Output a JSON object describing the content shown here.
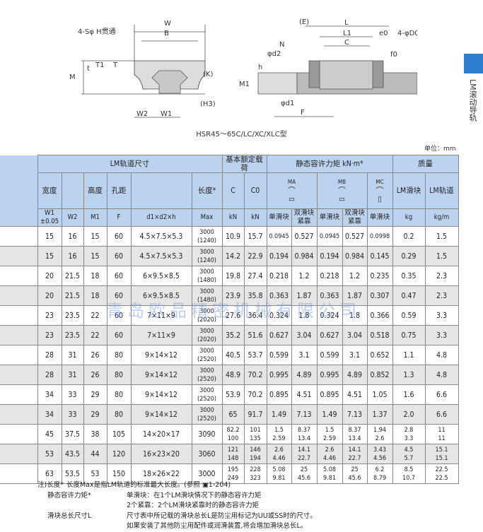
{
  "diagram": {
    "labels": {
      "hole": "4-Sφ H贯通",
      "W": "W",
      "B": "B",
      "T1": "T1",
      "T": "T",
      "t": "t",
      "M": "M",
      "K": "(K)",
      "H3": "(H3)",
      "W2": "W2",
      "W1": "W1",
      "E": "(E)",
      "L": "L",
      "L1": "L1",
      "e0": "e0",
      "D0": "4-φD0",
      "N": "N",
      "C": "C",
      "d2": "φd2",
      "f0": "f0",
      "h": "h",
      "M1": "M1",
      "d1": "φd1",
      "F": "F"
    },
    "caption": "HSR45～65C/LC/XC/XLC型"
  },
  "side_tab": {
    "label": "LM滚动导轨",
    "color": "#2f7fd1"
  },
  "unit": "单位：mm",
  "table": {
    "group_headers": [
      "LM轨道尺寸",
      "基本额定载荷",
      "静态容许力矩 kN·m*",
      "质量"
    ],
    "sub_headers": {
      "width": "宽度",
      "height": "高度",
      "pitch": "孔距",
      "length": "长度*",
      "C": "C",
      "C0": "C0",
      "MA": "MA",
      "MB": "MB",
      "MC": "MC",
      "block": "LM滑块",
      "rail": "LM轨道"
    },
    "unit_headers": [
      "W1 ±0.05",
      "W2",
      "M1",
      "F",
      "d1×d2×h",
      "Max",
      "kN",
      "kN",
      "单滑块",
      "双滑块紧靠",
      "单滑块",
      "双滑块紧靠",
      "单滑块",
      "kg",
      "kg/m"
    ],
    "header_color": "#bcd3ef",
    "rows": [
      [
        "15",
        "16",
        "15",
        "60",
        "4.5×7.5×5.3",
        "3000\n(1240)",
        "10.9",
        "15.7",
        "0.0945",
        "0.527",
        "0.0945",
        "0.527",
        "0.0998",
        "0.2",
        "1.5"
      ],
      [
        "15",
        "16",
        "15",
        "60",
        "4.5×7.5×5.3",
        "3000\n(1240)",
        "14.2",
        "22.9",
        "0.194",
        "0.984",
        "0.194",
        "0.984",
        "0.145",
        "0.29",
        "1.5"
      ],
      [
        "20",
        "21.5",
        "18",
        "60",
        "6×9.5×8.5",
        "3000\n(1480)",
        "19.8",
        "27.4",
        "0.218",
        "1.2",
        "0.218",
        "1.2",
        "0.235",
        "0.35",
        "2.3"
      ],
      [
        "20",
        "21.5",
        "18",
        "60",
        "6×9.5×8.5",
        "3000\n(1480)",
        "23.9",
        "35.8",
        "0.363",
        "1.87",
        "0.363",
        "1.87",
        "0.307",
        "0.47",
        "2.3"
      ],
      [
        "23",
        "23.5",
        "22",
        "60",
        "7×11×9",
        "3000\n(2020)",
        "27.6",
        "36.4",
        "0.324",
        "1.8",
        "0.324",
        "1.8",
        "0.366",
        "0.59",
        "3.3"
      ],
      [
        "23",
        "23.5",
        "22",
        "60",
        "7×11×9",
        "3000\n(2020)",
        "35.2",
        "51.6",
        "0.627",
        "3.04",
        "0.627",
        "3.04",
        "0.518",
        "0.75",
        "3.3"
      ],
      [
        "28",
        "31",
        "26",
        "80",
        "9×14×12",
        "3000\n(2520)",
        "40.5",
        "53.7",
        "0.599",
        "3.1",
        "0.599",
        "3.1",
        "0.652",
        "1.1",
        "4.8"
      ],
      [
        "28",
        "31",
        "26",
        "80",
        "9×14×12",
        "3000\n(2520)",
        "48.9",
        "70.2",
        "0.995",
        "4.89",
        "0.995",
        "4.89",
        "0.852",
        "1.3",
        "4.8"
      ],
      [
        "34",
        "33",
        "29",
        "80",
        "9×14×12",
        "3000\n(2520)",
        "53.9",
        "70.2",
        "0.895",
        "4.51",
        "0.895",
        "4.51",
        "1.05",
        "1.6",
        "6.6"
      ],
      [
        "34",
        "33",
        "29",
        "80",
        "9×14×12",
        "3000\n(2520)",
        "65",
        "91.7",
        "1.49",
        "7.13",
        "1.49",
        "7.13",
        "1.37",
        "2.0",
        "6.6"
      ],
      [
        "45",
        "37.5",
        "38",
        "105",
        "14×20×17",
        "3090",
        "82.2\n100",
        "101\n135",
        "1.5\n2.59",
        "8.37\n13.4",
        "1.5\n2.59",
        "8.37\n13.4",
        "1.94\n2.6",
        "2.8\n3.3",
        "11\n11"
      ],
      [
        "53",
        "43.5",
        "44",
        "120",
        "16×23×20",
        "3060",
        "121\n148",
        "146\n194",
        "2.6\n4.46",
        "14.1\n22.7",
        "2.6\n4.46",
        "14.1\n22.7",
        "3.43\n4.56",
        "4.5\n5.7",
        "15.1\n15.1"
      ],
      [
        "63",
        "53.5",
        "53",
        "150",
        "18×26×22",
        "3000",
        "195\n249",
        "228\n323",
        "5.08\n9.81",
        "25\n45.6",
        "5.08\n9.81",
        "25\n45.6",
        "6.2\n8.79",
        "8.5\n10.7",
        "22.5\n22.5"
      ]
    ]
  },
  "watermark": "青岛欧品精密机械有限公司",
  "notes": [
    {
      "key": "注)长度*",
      "text": "长度Max是指LM轨道的标准最大长度。(参照 ▣1-204)"
    },
    {
      "key": "静态容许力矩*",
      "text": "单滑块：在1个LM滑块情况下的静态容许力矩"
    },
    {
      "key": "",
      "text": "2个紧靠：2个LM滑块紧靠时的静态容许力矩"
    },
    {
      "key": "滑块总长尺寸L",
      "text": "尺寸表中所记载的滑块总长L是防尘用标记为UU或SS时的尺寸。"
    },
    {
      "key": "",
      "text": "如果安装了其他防尘用配件或润滑装置,将会增加滑块总长L。"
    }
  ]
}
